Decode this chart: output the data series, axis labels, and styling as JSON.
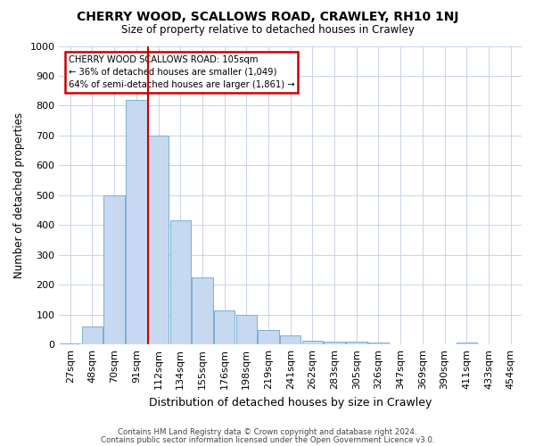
{
  "title": "CHERRY WOOD, SCALLOWS ROAD, CRAWLEY, RH10 1NJ",
  "subtitle": "Size of property relative to detached houses in Crawley",
  "xlabel": "Distribution of detached houses by size in Crawley",
  "ylabel": "Number of detached properties",
  "bar_color": "#c6d9f0",
  "bar_edge_color": "#7bafd4",
  "marker_color": "#cc0000",
  "categories": [
    "27sqm",
    "48sqm",
    "70sqm",
    "91sqm",
    "112sqm",
    "134sqm",
    "155sqm",
    "176sqm",
    "198sqm",
    "219sqm",
    "241sqm",
    "262sqm",
    "283sqm",
    "305sqm",
    "326sqm",
    "347sqm",
    "369sqm",
    "390sqm",
    "411sqm",
    "433sqm",
    "454sqm"
  ],
  "values": [
    5,
    60,
    500,
    820,
    700,
    415,
    225,
    115,
    100,
    50,
    30,
    12,
    10,
    10,
    8,
    2,
    2,
    1,
    8,
    1,
    1
  ],
  "marker_bar_index": 4,
  "annotation_title": "CHERRY WOOD SCALLOWS ROAD: 105sqm",
  "annotation_line1": "← 36% of detached houses are smaller (1,049)",
  "annotation_line2": "64% of semi-detached houses are larger (1,861) →",
  "ylim": [
    0,
    1000
  ],
  "yticks": [
    0,
    100,
    200,
    300,
    400,
    500,
    600,
    700,
    800,
    900,
    1000
  ],
  "footer1": "Contains HM Land Registry data © Crown copyright and database right 2024.",
  "footer2": "Contains public sector information licensed under the Open Government Licence v3.0.",
  "bg_color": "#ffffff",
  "grid_color": "#c8d4e8",
  "annotation_box_color": "#ffffff",
  "annotation_box_edge": "#cc0000"
}
